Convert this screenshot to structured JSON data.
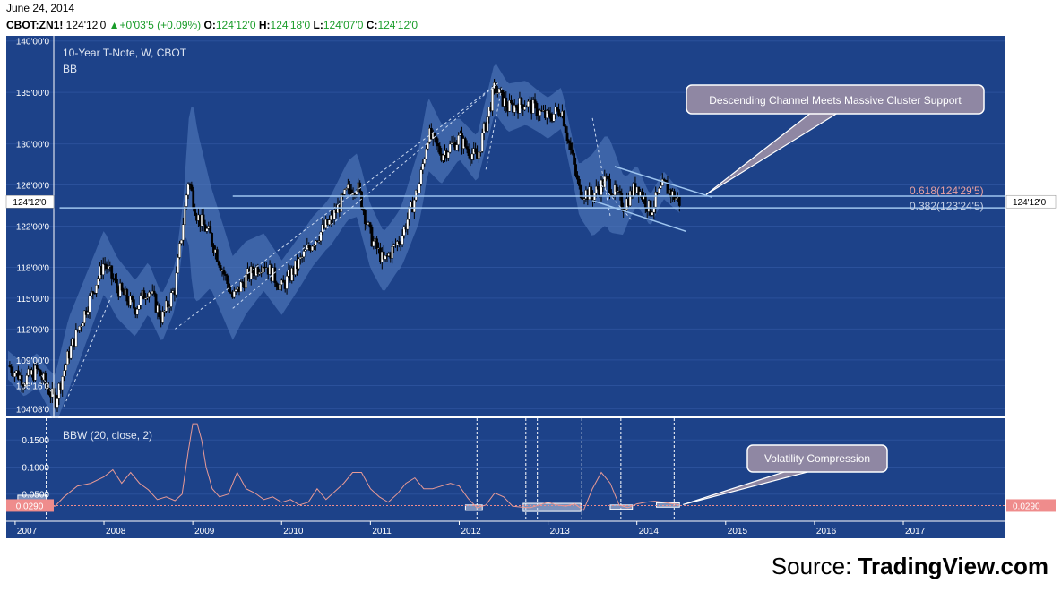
{
  "header": {
    "date": "June 24, 2014",
    "symbol": "CBOT:ZN1!",
    "last": "124'12'0",
    "change": "+0'03'5 (+0.09%)",
    "open_label": "O:",
    "open": "124'12'0",
    "high_label": "H:",
    "high": "124'18'0",
    "low_label": "L:",
    "low": "124'07'0",
    "close_label": "C:",
    "close": "124'12'0"
  },
  "source": {
    "prefix": "Source: ",
    "brand": "TradingView.com"
  },
  "colors": {
    "chart_bg": "#1d4289",
    "band": "#4f77b9",
    "up_candle": "#ffffff",
    "down_candle": "#000000",
    "bbw_line": "#e89a96",
    "level_line": "#9ec5ef",
    "callout": "#8f87a3",
    "fib_red": "#e8a0a0",
    "price_tag": "#ffffff",
    "bbw_tag": "#ef8c8c"
  },
  "chart_data": [
    {
      "type": "candlestick",
      "title": "10-Year T-Note, W, CBOT",
      "indicator_label": "BB",
      "y_ticks": [
        "104'08'0",
        "106'16'0",
        "109'00'0",
        "112'00'0",
        "115'00'0",
        "118'00'0",
        "122'00'0",
        "126'00'0",
        "130'00'0",
        "135'00'0",
        "140'00'0"
      ],
      "y_tick_values": [
        104.25,
        106.5,
        109,
        112,
        115,
        118,
        122,
        126,
        130,
        135,
        140
      ],
      "ylim": [
        103.5,
        140.5
      ],
      "x_ticks": [
        "2007",
        "2008",
        "2009",
        "2010",
        "2011",
        "2012",
        "2013",
        "2014",
        "2015",
        "2016",
        "2017"
      ],
      "x_tick_values": [
        2007,
        2008,
        2009,
        2010,
        2011,
        2012,
        2013,
        2014,
        2015,
        2016,
        2017
      ],
      "xlim": [
        2006.9,
        2018.15
      ],
      "last_price": 124.375,
      "last_price_label": "124'12'0",
      "close_path": {
        "x": [
          2006.92,
          2007.1,
          2007.25,
          2007.45,
          2007.6,
          2007.8,
          2008.0,
          2008.15,
          2008.35,
          2008.5,
          2008.65,
          2008.8,
          2008.95,
          2009.05,
          2009.2,
          2009.45,
          2009.6,
          2009.8,
          2010.0,
          2010.2,
          2010.35,
          2010.55,
          2010.75,
          2010.85,
          2011.0,
          2011.15,
          2011.35,
          2011.55,
          2011.65,
          2011.8,
          2012.0,
          2012.2,
          2012.4,
          2012.55,
          2012.75,
          2013.0,
          2013.15,
          2013.35,
          2013.5,
          2013.65,
          2013.85,
          2014.0,
          2014.15,
          2014.3,
          2014.48
        ],
        "y": [
          108.5,
          107.0,
          108.0,
          105.0,
          109.5,
          114.0,
          118.5,
          116.0,
          114.0,
          116.0,
          113.0,
          116.0,
          126.5,
          123.0,
          121.0,
          115.0,
          117.0,
          118.5,
          116.0,
          118.5,
          120.5,
          122.5,
          125.5,
          126.0,
          121.0,
          118.5,
          121.0,
          126.0,
          131.0,
          129.0,
          130.5,
          128.5,
          135.5,
          133.5,
          134.0,
          132.5,
          133.5,
          125.5,
          125.0,
          126.5,
          124.0,
          126.0,
          123.5,
          126.0,
          124.375
        ]
      },
      "band_half_width": {
        "x": [
          2006.92,
          2007.35,
          2007.6,
          2008.3,
          2008.9,
          2009.0,
          2009.2,
          2009.8,
          2010.5,
          2010.9,
          2011.3,
          2011.6,
          2012.0,
          2012.4,
          2012.9,
          2013.3,
          2013.5,
          2013.7,
          2013.9,
          2014.1,
          2014.48
        ],
        "y": [
          1.4,
          1.8,
          3.5,
          2.8,
          2.0,
          9.5,
          5.0,
          2.8,
          2.3,
          3.2,
          2.8,
          3.8,
          2.0,
          2.5,
          2.0,
          2.0,
          4.0,
          4.5,
          2.3,
          1.6,
          1.1
        ]
      },
      "levels": [
        {
          "label": "0.618(124'29'5)",
          "value": 124.92,
          "x_start": 2009.45
        },
        {
          "label": "0.382(123'24'5)",
          "value": 123.77,
          "x_start": 2007.5
        }
      ],
      "callout": "Descending Channel Meets Massive Cluster Support"
    },
    {
      "type": "line",
      "title": "BBW (20, close, 2)",
      "y_ticks": [
        "0.0500",
        "0.1000",
        "0.1500"
      ],
      "y_tick_values": [
        0.05,
        0.1,
        0.15
      ],
      "ylim": [
        0.0,
        0.19
      ],
      "last_value": 0.029,
      "last_value_label": "0.0290",
      "series": [
        {
          "x": [
            2006.92,
            2007.1,
            2007.3,
            2007.45,
            2007.55,
            2007.7,
            2007.85,
            2008.0,
            2008.1,
            2008.2,
            2008.3,
            2008.4,
            2008.5,
            2008.6,
            2008.7,
            2008.8,
            2008.88,
            2008.95,
            2009.0,
            2009.05,
            2009.1,
            2009.15,
            2009.22,
            2009.3,
            2009.4,
            2009.5,
            2009.6,
            2009.7,
            2009.8,
            2009.9,
            2010.0,
            2010.1,
            2010.2,
            2010.3,
            2010.4,
            2010.5,
            2010.6,
            2010.7,
            2010.8,
            2010.9,
            2011.0,
            2011.1,
            2011.2,
            2011.3,
            2011.4,
            2011.5,
            2011.6,
            2011.7,
            2011.8,
            2011.9,
            2012.0,
            2012.1,
            2012.2,
            2012.3,
            2012.4,
            2012.5,
            2012.6,
            2012.7,
            2012.8,
            2012.9,
            2013.0,
            2013.1,
            2013.2,
            2013.3,
            2013.4,
            2013.5,
            2013.6,
            2013.7,
            2013.8,
            2013.9,
            2014.0,
            2014.1,
            2014.2,
            2014.3,
            2014.48
          ],
          "y": [
            0.035,
            0.028,
            0.027,
            0.028,
            0.045,
            0.065,
            0.07,
            0.082,
            0.095,
            0.07,
            0.09,
            0.07,
            0.058,
            0.04,
            0.045,
            0.038,
            0.05,
            0.13,
            0.18,
            0.18,
            0.15,
            0.1,
            0.06,
            0.045,
            0.05,
            0.09,
            0.06,
            0.052,
            0.04,
            0.045,
            0.035,
            0.04,
            0.03,
            0.035,
            0.06,
            0.04,
            0.055,
            0.07,
            0.09,
            0.09,
            0.06,
            0.045,
            0.035,
            0.05,
            0.07,
            0.08,
            0.06,
            0.06,
            0.065,
            0.07,
            0.065,
            0.042,
            0.025,
            0.03,
            0.052,
            0.045,
            0.028,
            0.026,
            0.025,
            0.03,
            0.035,
            0.03,
            0.028,
            0.032,
            0.02,
            0.06,
            0.09,
            0.07,
            0.03,
            0.025,
            0.032,
            0.035,
            0.037,
            0.035,
            0.03
          ]
        }
      ],
      "vlines_x": [
        2007.35,
        2012.2,
        2012.75,
        2012.88,
        2013.38,
        2013.82,
        2014.42
      ],
      "boxes": [
        {
          "x0": 2007.03,
          "x1": 2007.35,
          "y0": 0.02,
          "y1": 0.048
        },
        {
          "x0": 2012.07,
          "x1": 2012.26,
          "y0": 0.02,
          "y1": 0.03
        },
        {
          "x0": 2012.72,
          "x1": 2013.37,
          "y0": 0.018,
          "y1": 0.033
        },
        {
          "x0": 2013.7,
          "x1": 2013.95,
          "y0": 0.022,
          "y1": 0.03
        },
        {
          "x0": 2014.22,
          "x1": 2014.48,
          "y0": 0.026,
          "y1": 0.034
        }
      ],
      "callout": "Volatility Compression"
    }
  ]
}
